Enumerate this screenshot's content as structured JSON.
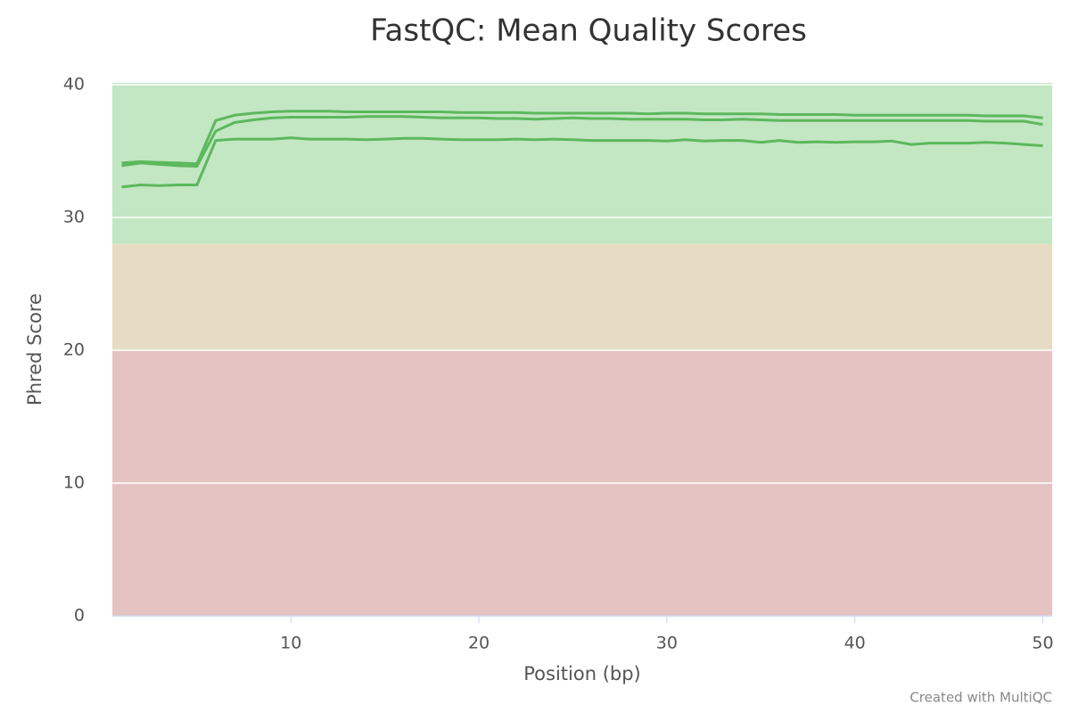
{
  "chart_data": {
    "type": "line",
    "title": "FastQC: Mean Quality Scores",
    "x_label": "Position (bp)",
    "y_label": "Phred Score",
    "credit": "Created with MultiQC",
    "x": [
      1,
      2,
      3,
      4,
      5,
      6,
      7,
      8,
      9,
      10,
      11,
      12,
      13,
      14,
      15,
      16,
      17,
      18,
      19,
      20,
      21,
      22,
      23,
      24,
      25,
      26,
      27,
      28,
      29,
      30,
      31,
      32,
      33,
      34,
      35,
      36,
      37,
      38,
      39,
      40,
      41,
      42,
      43,
      44,
      45,
      46,
      47,
      48,
      49,
      50
    ],
    "series": [
      {
        "color": "#5cb85c",
        "values": [
          34.1,
          34.2,
          34.15,
          34.1,
          34.05,
          37.3,
          37.7,
          37.85,
          37.95,
          38.0,
          38.0,
          38.0,
          37.95,
          37.95,
          37.95,
          37.95,
          37.95,
          37.95,
          37.9,
          37.9,
          37.9,
          37.9,
          37.85,
          37.85,
          37.85,
          37.85,
          37.85,
          37.85,
          37.8,
          37.85,
          37.85,
          37.8,
          37.8,
          37.8,
          37.8,
          37.75,
          37.75,
          37.75,
          37.75,
          37.7,
          37.7,
          37.7,
          37.7,
          37.7,
          37.7,
          37.7,
          37.65,
          37.65,
          37.65,
          37.5
        ]
      },
      {
        "color": "#5cb85c",
        "values": [
          33.9,
          34.1,
          34.0,
          33.9,
          33.85,
          36.5,
          37.15,
          37.35,
          37.5,
          37.55,
          37.55,
          37.55,
          37.55,
          37.6,
          37.6,
          37.6,
          37.55,
          37.5,
          37.5,
          37.5,
          37.45,
          37.45,
          37.4,
          37.45,
          37.5,
          37.45,
          37.45,
          37.4,
          37.4,
          37.4,
          37.4,
          37.35,
          37.35,
          37.4,
          37.35,
          37.3,
          37.3,
          37.3,
          37.3,
          37.3,
          37.3,
          37.3,
          37.3,
          37.3,
          37.3,
          37.3,
          37.25,
          37.25,
          37.25,
          37.0
        ]
      },
      {
        "color": "#5cb85c",
        "values": [
          32.3,
          32.45,
          32.4,
          32.45,
          32.45,
          35.8,
          35.9,
          35.9,
          35.9,
          36.0,
          35.9,
          35.9,
          35.9,
          35.85,
          35.9,
          35.95,
          35.95,
          35.9,
          35.85,
          35.85,
          35.85,
          35.9,
          35.85,
          35.9,
          35.85,
          35.8,
          35.8,
          35.8,
          35.8,
          35.75,
          35.85,
          35.75,
          35.8,
          35.8,
          35.65,
          35.8,
          35.65,
          35.7,
          35.65,
          35.7,
          35.7,
          35.75,
          35.5,
          35.6,
          35.6,
          35.6,
          35.65,
          35.6,
          35.5,
          35.4
        ]
      }
    ],
    "bands": [
      {
        "from": 28,
        "to": 40,
        "color": "#c3e6c3"
      },
      {
        "from": 20,
        "to": 28,
        "color": "#e6dcc3"
      },
      {
        "from": 0,
        "to": 20,
        "color": "#e6c3c3"
      }
    ],
    "xlim": [
      0.5,
      50.5
    ],
    "xticks": [
      10,
      20,
      30,
      40,
      50
    ],
    "ylim": [
      0,
      40
    ],
    "yticks": [
      0,
      10,
      20,
      30,
      40
    ],
    "grid": true
  }
}
